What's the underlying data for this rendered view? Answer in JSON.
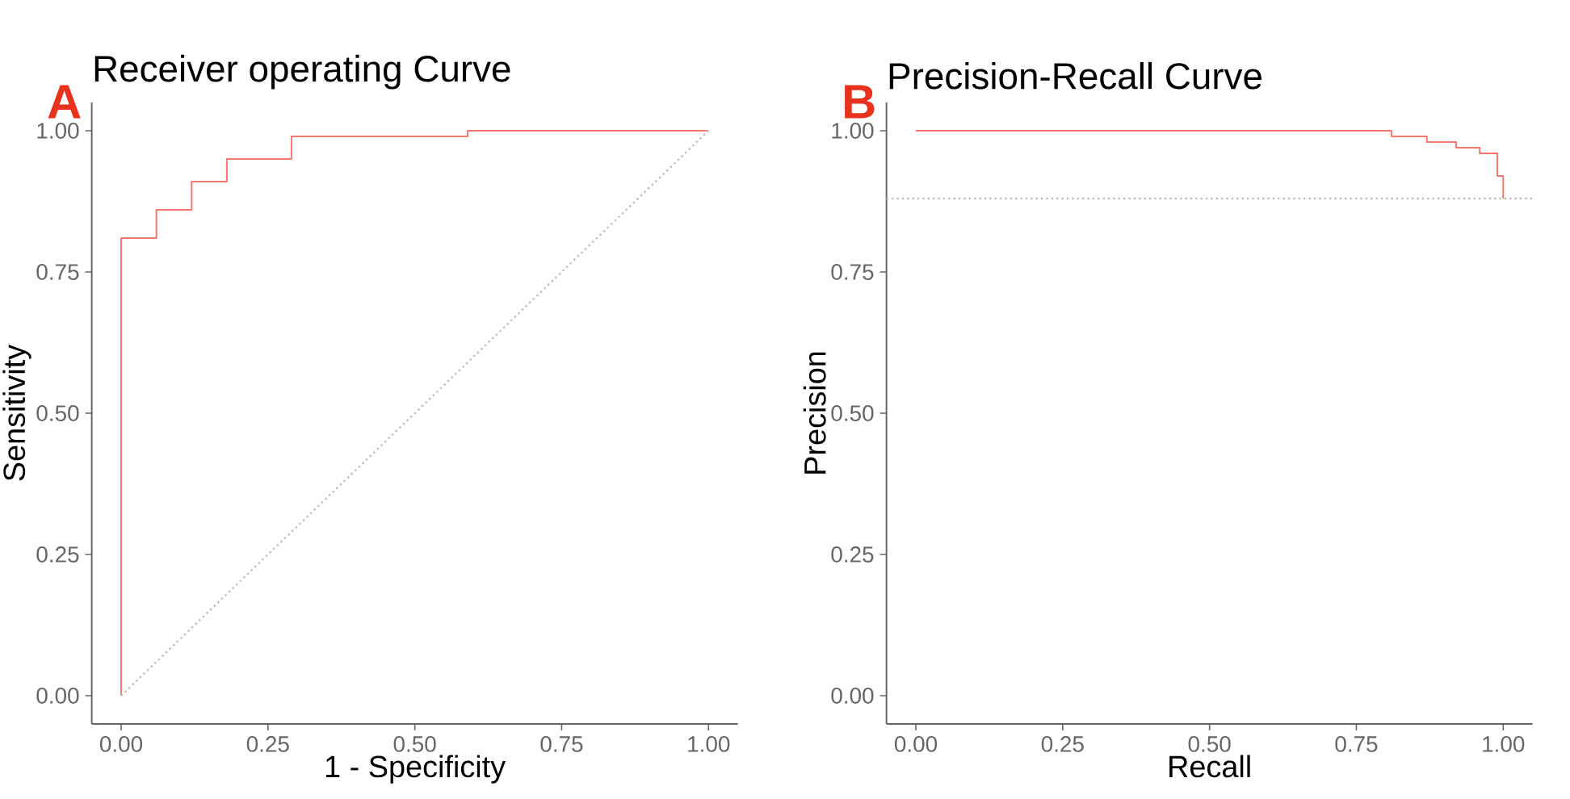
{
  "chart_data": [
    {
      "type": "step",
      "title": "Receiver operating Curve",
      "xlabel": "1 - Specificity",
      "ylabel": "Sensitivity",
      "annotations": [
        "A"
      ],
      "series": [
        {
          "color": "#f8766d",
          "x": [
            0,
            0,
            0.06,
            0.12,
            0.18,
            0.29,
            0.59,
            1
          ],
          "values": [
            0,
            0.81,
            0.86,
            0.91,
            0.95,
            0.99,
            1,
            1
          ]
        },
        {
          "type": "line",
          "color": "#bebebe",
          "line_style": "dotted",
          "x": [
            0,
            1
          ],
          "values": [
            0,
            1
          ]
        }
      ],
      "xlim": [
        -0.05,
        1.05
      ],
      "ylim": [
        -0.05,
        1.05
      ],
      "xticks": [
        {
          "value": 0,
          "label": "0.00"
        },
        {
          "value": 0.25,
          "label": "0.25"
        },
        {
          "value": 0.5,
          "label": "0.50"
        },
        {
          "value": 0.75,
          "label": "0.75"
        },
        {
          "value": 1,
          "label": "1.00"
        }
      ],
      "yticks": [
        {
          "value": 0,
          "label": "0.00"
        },
        {
          "value": 0.25,
          "label": "0.25"
        },
        {
          "value": 0.5,
          "label": "0.50"
        },
        {
          "value": 0.75,
          "label": "0.75"
        },
        {
          "value": 1,
          "label": "1.00"
        }
      ]
    },
    {
      "type": "step",
      "title": "Precision-Recall Curve",
      "xlabel": "Recall",
      "ylabel": "Precision",
      "annotations": [
        "B"
      ],
      "series": [
        {
          "color": "#f8766d",
          "x": [
            0,
            0.81,
            0.87,
            0.92,
            0.96,
            0.99,
            1
          ],
          "values": [
            1,
            0.99,
            0.98,
            0.97,
            0.96,
            0.92,
            0.88
          ]
        }
      ],
      "ref_lines": [
        {
          "axis": "y",
          "value": 0.88,
          "color": "#bebebe",
          "line_style": "dotted"
        }
      ],
      "xlim": [
        -0.05,
        1.05
      ],
      "ylim": [
        -0.05,
        1.05
      ],
      "xticks": [
        {
          "value": 0,
          "label": "0.00"
        },
        {
          "value": 0.25,
          "label": "0.25"
        },
        {
          "value": 0.5,
          "label": "0.50"
        },
        {
          "value": 0.75,
          "label": "0.75"
        },
        {
          "value": 1,
          "label": "1.00"
        }
      ],
      "yticks": [
        {
          "value": 0,
          "label": "0.00"
        },
        {
          "value": 0.25,
          "label": "0.25"
        },
        {
          "value": 0.5,
          "label": "0.50"
        },
        {
          "value": 0.75,
          "label": "0.75"
        },
        {
          "value": 1,
          "label": "1.00"
        }
      ]
    }
  ]
}
